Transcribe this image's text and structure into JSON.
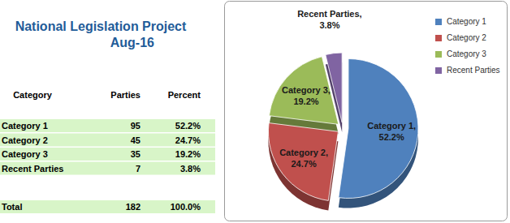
{
  "chart_data": {
    "type": "pie",
    "title": "National Legislation Project",
    "subtitle": "Aug-16",
    "categories": [
      "Category 1",
      "Category 2",
      "Category 3",
      "Recent Parties"
    ],
    "values": [
      52.2,
      24.7,
      19.2,
      3.8
    ],
    "value_labels": [
      "Category 1, 52.2%",
      "Category 2, 24.7%",
      "Category 3, 19.2%",
      "Recent Parties, 3.8%"
    ],
    "colors": [
      "#4f81bd",
      "#c0504d",
      "#9bbb59",
      "#8064a2"
    ],
    "data_labels": true,
    "legend": "right"
  },
  "table": {
    "columns": [
      "Category",
      "Parties",
      "Percent"
    ],
    "rows": [
      [
        "Category 1",
        95,
        "52.2%"
      ],
      [
        "Category 2",
        45,
        "24.7%"
      ],
      [
        "Category 3",
        35,
        "19.2%"
      ],
      [
        "Recent Parties",
        7,
        "3.8%"
      ]
    ],
    "total": [
      "Total",
      182,
      "100.0%"
    ]
  }
}
